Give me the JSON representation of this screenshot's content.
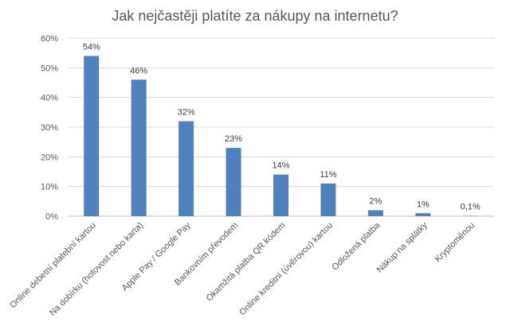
{
  "chart_data": {
    "type": "bar",
    "title": "Jak nejčastěji platíte za nákupy na internetu?",
    "categories": [
      "Online debetní platební kartou",
      "Na dobírku (hotovost nebo karta)",
      "Apple Pay / Google Pay",
      "Bankovním převodem",
      "Okamžitá platba QR kódem",
      "Online kreditní (úvěrovou) kartou",
      "Odložená platba",
      "Nákup na splátky",
      "Kryptoměnou"
    ],
    "values": [
      54,
      46,
      32,
      23,
      14,
      11,
      2,
      1,
      0.1
    ],
    "data_labels": [
      "54%",
      "46%",
      "32%",
      "23%",
      "14%",
      "11%",
      "2%",
      "1%",
      "0,1%"
    ],
    "y_ticks": [
      "0%",
      "10%",
      "20%",
      "30%",
      "40%",
      "50%",
      "60%"
    ],
    "ylim": [
      0,
      60
    ],
    "grid": true,
    "legend": "none",
    "bar_color": "#4f81bd"
  }
}
